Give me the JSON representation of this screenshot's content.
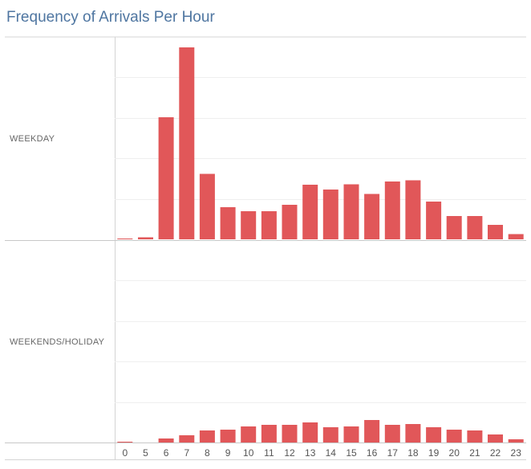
{
  "chart_data": {
    "type": "bar",
    "title": "Frequency of Arrivals Per Hour",
    "categories": [
      "0",
      "5",
      "6",
      "7",
      "8",
      "9",
      "10",
      "11",
      "12",
      "13",
      "14",
      "15",
      "16",
      "17",
      "18",
      "19",
      "20",
      "21",
      "22",
      "23"
    ],
    "ylim": [
      0,
      5
    ],
    "grid": true,
    "bar_color": "#e15759",
    "title_color": "#4f76a1",
    "series": [
      {
        "name": "WEEKDAY",
        "values": [
          0.02,
          0.05,
          3.04,
          4.78,
          1.63,
          0.8,
          0.7,
          0.7,
          0.86,
          1.36,
          1.24,
          1.37,
          1.13,
          1.44,
          1.47,
          0.94,
          0.58,
          0.58,
          0.36,
          0.13
        ]
      },
      {
        "name": "WEEKENDS/HOLIDAY",
        "values": [
          0.02,
          0.0,
          0.1,
          0.18,
          0.3,
          0.32,
          0.4,
          0.44,
          0.44,
          0.5,
          0.38,
          0.4,
          0.56,
          0.44,
          0.46,
          0.38,
          0.32,
          0.3,
          0.2,
          0.08
        ]
      }
    ]
  }
}
